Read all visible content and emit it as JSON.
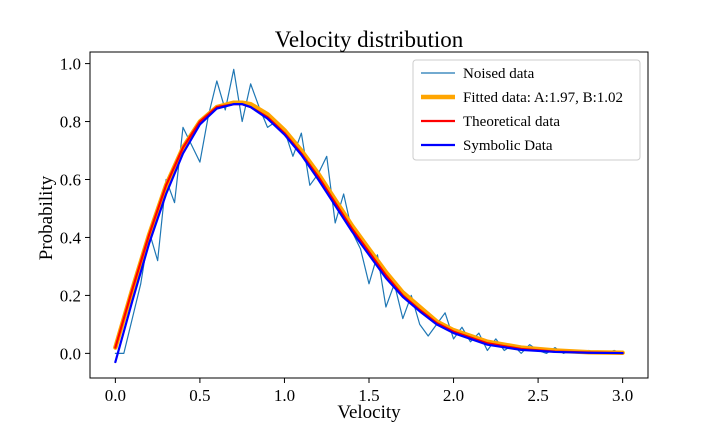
{
  "chart_data": {
    "type": "line",
    "title": "Velocity distribution",
    "xlabel": "Velocity",
    "ylabel": "Probability",
    "xlim": [
      -0.15,
      3.15
    ],
    "ylim": [
      -0.085,
      1.04
    ],
    "x_ticks": [
      0.0,
      0.5,
      1.0,
      1.5,
      2.0,
      2.5,
      3.0
    ],
    "x_tick_labels": [
      "0.0",
      "0.5",
      "1.0",
      "1.5",
      "2.0",
      "2.5",
      "3.0"
    ],
    "y_ticks": [
      0.0,
      0.2,
      0.4,
      0.6,
      0.8,
      1.0
    ],
    "y_tick_labels": [
      "0.0",
      "0.2",
      "0.4",
      "0.6",
      "0.8",
      "1.0"
    ],
    "grid": false,
    "legend_position": "top-right",
    "series": [
      {
        "name": "Noised data",
        "color": "#1f77b4",
        "style": "thin",
        "x": [
          0.0,
          0.05,
          0.1,
          0.15,
          0.2,
          0.25,
          0.3,
          0.35,
          0.4,
          0.45,
          0.5,
          0.55,
          0.6,
          0.65,
          0.7,
          0.75,
          0.8,
          0.85,
          0.9,
          0.95,
          1.0,
          1.05,
          1.1,
          1.15,
          1.2,
          1.25,
          1.3,
          1.35,
          1.4,
          1.45,
          1.5,
          1.55,
          1.6,
          1.65,
          1.7,
          1.75,
          1.8,
          1.85,
          1.9,
          1.95,
          2.0,
          2.05,
          2.1,
          2.15,
          2.2,
          2.25,
          2.3,
          2.35,
          2.4,
          2.45,
          2.5,
          2.55,
          2.6,
          2.65,
          2.7,
          2.75,
          2.8,
          2.85,
          2.9,
          2.95,
          3.0
        ],
        "values": [
          0.0,
          0.0,
          0.12,
          0.24,
          0.42,
          0.32,
          0.6,
          0.52,
          0.78,
          0.72,
          0.66,
          0.82,
          0.94,
          0.84,
          0.98,
          0.8,
          0.93,
          0.85,
          0.78,
          0.8,
          0.77,
          0.68,
          0.76,
          0.58,
          0.62,
          0.68,
          0.45,
          0.55,
          0.42,
          0.36,
          0.24,
          0.34,
          0.16,
          0.24,
          0.12,
          0.2,
          0.1,
          0.06,
          0.1,
          0.14,
          0.05,
          0.09,
          0.04,
          0.07,
          0.01,
          0.05,
          0.01,
          0.03,
          0.0,
          0.03,
          0.01,
          0.0,
          0.02,
          0.0,
          0.01,
          0.0,
          0.01,
          0.0,
          0.0,
          0.01,
          0.0
        ]
      },
      {
        "name": "Fitted data: A:1.97, B:1.02",
        "color": "#ffa500",
        "style": "thick",
        "x": [
          0.0,
          0.1,
          0.2,
          0.3,
          0.4,
          0.5,
          0.6,
          0.7,
          0.75,
          0.8,
          0.9,
          1.0,
          1.1,
          1.2,
          1.3,
          1.4,
          1.5,
          1.6,
          1.7,
          1.8,
          1.9,
          2.0,
          2.2,
          2.4,
          2.6,
          2.8,
          3.0
        ],
        "values": [
          0.02,
          0.22,
          0.41,
          0.58,
          0.71,
          0.8,
          0.85,
          0.865,
          0.865,
          0.86,
          0.825,
          0.77,
          0.7,
          0.62,
          0.53,
          0.44,
          0.36,
          0.28,
          0.21,
          0.16,
          0.11,
          0.08,
          0.04,
          0.02,
          0.01,
          0.004,
          0.002
        ]
      },
      {
        "name": "Theoretical data",
        "color": "#ff0000",
        "style": "medium",
        "x": [
          0.0,
          0.1,
          0.2,
          0.3,
          0.4,
          0.5,
          0.6,
          0.7,
          0.75,
          0.8,
          0.9,
          1.0,
          1.1,
          1.2,
          1.3,
          1.4,
          1.5,
          1.6,
          1.7,
          1.8,
          1.9,
          2.0,
          2.2,
          2.4,
          2.6,
          2.8,
          3.0
        ],
        "values": [
          0.02,
          0.22,
          0.41,
          0.58,
          0.71,
          0.8,
          0.85,
          0.86,
          0.86,
          0.85,
          0.815,
          0.76,
          0.69,
          0.61,
          0.52,
          0.43,
          0.35,
          0.27,
          0.2,
          0.15,
          0.105,
          0.075,
          0.035,
          0.015,
          0.006,
          0.003,
          0.001
        ]
      },
      {
        "name": "Symbolic Data",
        "color": "#0000ff",
        "style": "medium",
        "x": [
          0.0,
          0.1,
          0.2,
          0.3,
          0.4,
          0.5,
          0.6,
          0.7,
          0.75,
          0.8,
          0.9,
          1.0,
          1.1,
          1.2,
          1.3,
          1.4,
          1.5,
          1.6,
          1.7,
          1.8,
          1.9,
          2.0,
          2.2,
          2.4,
          2.6,
          2.8,
          3.0
        ],
        "values": [
          -0.03,
          0.18,
          0.38,
          0.55,
          0.69,
          0.79,
          0.845,
          0.86,
          0.86,
          0.85,
          0.81,
          0.755,
          0.685,
          0.6,
          0.51,
          0.42,
          0.34,
          0.26,
          0.195,
          0.145,
          0.1,
          0.07,
          0.03,
          0.012,
          0.005,
          0.002,
          0.001
        ]
      }
    ]
  }
}
